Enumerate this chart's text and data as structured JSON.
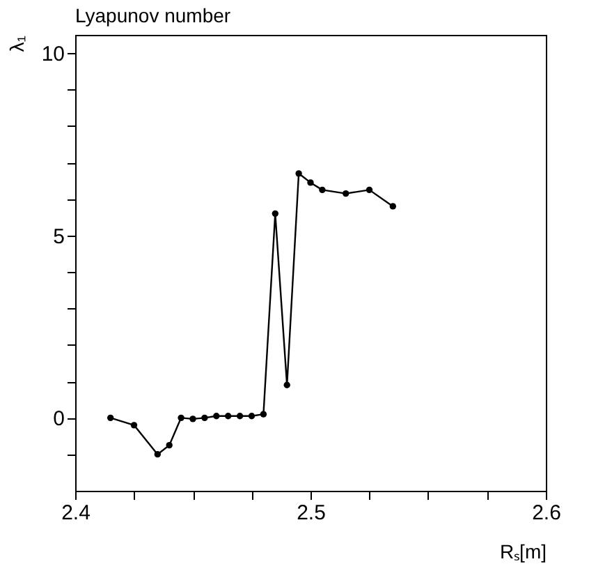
{
  "chart_data": {
    "type": "line",
    "title": "Lyapunov number",
    "xlabel": "Rₛ[m]",
    "ylabel": "λ₁",
    "x": [
      2.415,
      2.425,
      2.435,
      2.44,
      2.445,
      2.45,
      2.455,
      2.46,
      2.465,
      2.47,
      2.475,
      2.48,
      2.485,
      2.49,
      2.495,
      2.5,
      2.505,
      2.515,
      2.525,
      2.535
    ],
    "series": [
      {
        "color": "#000000",
        "values": [
          0,
          -0.2,
          -1.0,
          -0.75,
          0,
          -0.03,
          0,
          0.05,
          0.05,
          0.05,
          0.05,
          0.1,
          5.6,
          0.9,
          6.7,
          6.45,
          6.25,
          6.15,
          6.25,
          5.8
        ]
      }
    ],
    "xlim": [
      2.4,
      2.6
    ],
    "ylim": [
      -2,
      10.5
    ],
    "xticks": [
      {
        "value": 2.4,
        "label": "2.4"
      },
      {
        "value": 2.425,
        "label": null
      },
      {
        "value": 2.45,
        "label": null
      },
      {
        "value": 2.475,
        "label": null
      },
      {
        "value": 2.5,
        "label": "2.5"
      },
      {
        "value": 2.525,
        "label": null
      },
      {
        "value": 2.55,
        "label": null
      },
      {
        "value": 2.575,
        "label": null
      },
      {
        "value": 2.6,
        "label": "2.6"
      }
    ],
    "yticks": [
      {
        "value": -1,
        "label": null
      },
      0,
      {
        "value": 1,
        "label": null
      },
      {
        "value": 2,
        "label": null
      },
      {
        "value": 3,
        "label": null
      },
      {
        "value": 4,
        "label": null
      },
      5,
      {
        "value": 6,
        "label": null
      },
      {
        "value": 7,
        "label": null
      },
      {
        "value": 8,
        "label": null
      },
      {
        "value": 9,
        "label": null
      },
      10
    ],
    "marker": "circle",
    "grid": false,
    "legend": false
  }
}
